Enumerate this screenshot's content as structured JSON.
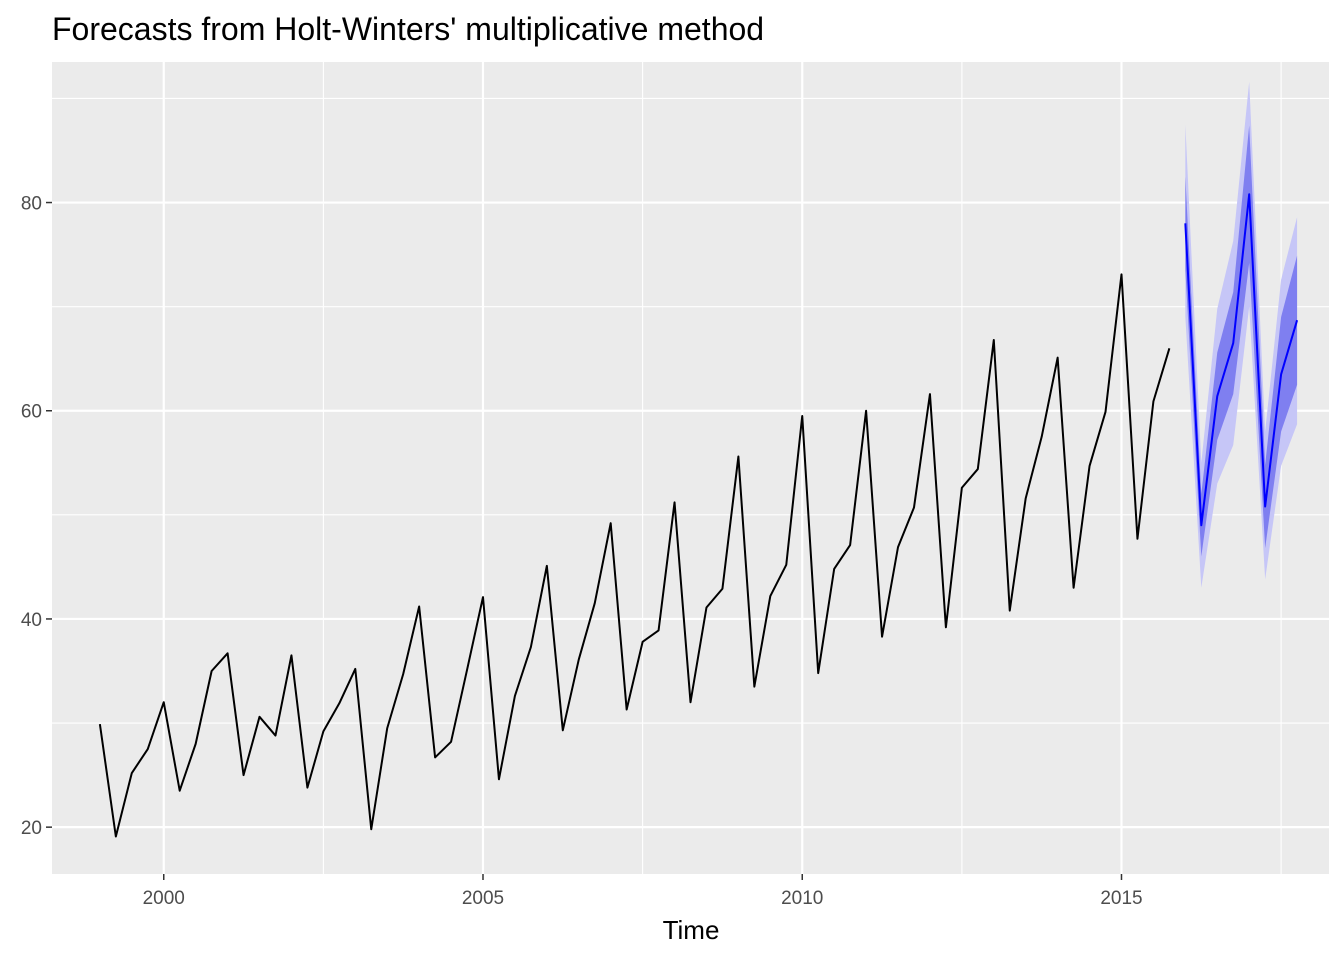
{
  "colors": {
    "panel_bg": "#ebebeb",
    "grid": "#ffffff",
    "observed_line": "#000000",
    "forecast_line": "#0000ff",
    "interval_80": "#7f7ff0",
    "interval_95": "#c6c6f7"
  },
  "chart_data": {
    "type": "line",
    "title": "Forecasts from Holt-Winters' multiplicative method",
    "xlabel": "Time",
    "ylabel": "",
    "xlim": [
      1998.25,
      2018.25
    ],
    "ylim": [
      15.5,
      93.5
    ],
    "grid": true,
    "legend": "none",
    "x_ticks": [
      2000,
      2005,
      2010,
      2015
    ],
    "y_ticks": [
      20,
      40,
      60,
      80
    ],
    "series": [
      {
        "role": "observed",
        "x": [
          1999.0,
          1999.25,
          1999.5,
          1999.75,
          2000.0,
          2000.25,
          2000.5,
          2000.75,
          2001.0,
          2001.25,
          2001.5,
          2001.75,
          2002.0,
          2002.25,
          2002.5,
          2002.75,
          2003.0,
          2003.25,
          2003.5,
          2003.75,
          2004.0,
          2004.25,
          2004.5,
          2004.75,
          2005.0,
          2005.25,
          2005.5,
          2005.75,
          2006.0,
          2006.25,
          2006.5,
          2006.75,
          2007.0,
          2007.25,
          2007.5,
          2007.75,
          2008.0,
          2008.25,
          2008.5,
          2008.75,
          2009.0,
          2009.25,
          2009.5,
          2009.75,
          2010.0,
          2010.25,
          2010.5,
          2010.75,
          2011.0,
          2011.25,
          2011.5,
          2011.75,
          2012.0,
          2012.25,
          2012.5,
          2012.75,
          2013.0,
          2013.25,
          2013.5,
          2013.75,
          2014.0,
          2014.25,
          2014.5,
          2014.75,
          2015.0,
          2015.25,
          2015.5,
          2015.75
        ],
        "values": [
          29.9,
          19.1,
          25.2,
          27.5,
          32.0,
          23.5,
          28.0,
          35.0,
          36.7,
          25.0,
          30.6,
          28.8,
          36.5,
          23.8,
          29.2,
          31.9,
          35.2,
          19.8,
          29.5,
          34.7,
          41.2,
          26.7,
          28.2,
          35.1,
          42.1,
          24.6,
          32.6,
          37.3,
          45.1,
          29.3,
          36.1,
          41.5,
          49.2,
          31.3,
          37.8,
          38.9,
          51.2,
          32.0,
          41.1,
          42.9,
          55.6,
          33.5,
          42.2,
          45.2,
          59.5,
          34.8,
          44.8,
          47.1,
          60.0,
          38.3,
          46.9,
          50.7,
          61.6,
          39.2,
          52.6,
          54.4,
          66.8,
          40.8,
          51.6,
          57.5,
          65.1,
          43.0,
          54.7,
          59.9,
          73.1,
          47.7,
          60.9,
          66.0
        ]
      },
      {
        "role": "forecast",
        "x": [
          2016.0,
          2016.25,
          2016.5,
          2016.75,
          2017.0,
          2017.25,
          2017.5,
          2017.75
        ],
        "values": [
          78.0,
          49.0,
          61.4,
          66.5,
          80.8,
          50.8,
          63.5,
          68.7
        ],
        "lo80": [
          73.5,
          46.0,
          57.2,
          61.6,
          74.2,
          46.8,
          58.0,
          62.5
        ],
        "hi80": [
          82.5,
          52.0,
          65.6,
          71.4,
          87.4,
          54.8,
          69.0,
          74.9
        ],
        "lo95": [
          69.0,
          43.0,
          53.0,
          56.7,
          70.0,
          43.8,
          54.7,
          58.7
        ],
        "hi95": [
          87.5,
          55.0,
          69.8,
          76.3,
          91.6,
          58.0,
          72.6,
          78.6
        ]
      }
    ]
  }
}
